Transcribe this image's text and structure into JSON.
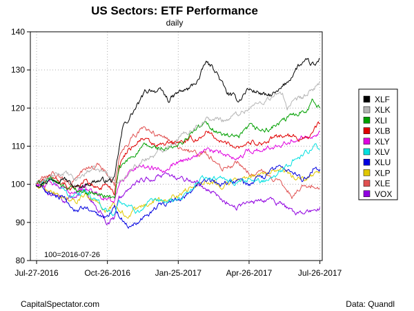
{
  "chart_data": {
    "type": "line",
    "title": "US Sectors: ETF Performance",
    "subtitle": "daily",
    "annotation": "100=2016-07-26",
    "source_left": "CapitalSpectator.com",
    "source_right": "Data: Quandl",
    "ylim": [
      80,
      140
    ],
    "yticks": [
      80,
      90,
      100,
      110,
      120,
      130,
      140
    ],
    "xlim": [
      "2016-07-19",
      "2017-07-29"
    ],
    "xticks": [
      {
        "date": "2016-07-27",
        "label": "Jul-27-2016"
      },
      {
        "date": "2016-10-26",
        "label": "Oct-26-2016"
      },
      {
        "date": "2017-01-25",
        "label": "Jan-25-2017"
      },
      {
        "date": "2017-04-26",
        "label": "Apr-26-2017"
      },
      {
        "date": "2017-07-26",
        "label": "Jul-26-2017"
      }
    ],
    "grid": true,
    "legend_position": "right",
    "series": [
      {
        "name": "XLF",
        "color": "#000000",
        "anchors": [
          [
            "2016-07-26",
            100
          ],
          [
            "2016-08-10",
            101
          ],
          [
            "2016-08-30",
            102
          ],
          [
            "2016-09-15",
            99
          ],
          [
            "2016-09-28",
            100
          ],
          [
            "2016-10-12",
            101
          ],
          [
            "2016-10-26",
            101
          ],
          [
            "2016-11-04",
            101
          ],
          [
            "2016-11-09",
            108
          ],
          [
            "2016-11-15",
            115
          ],
          [
            "2016-11-25",
            118
          ],
          [
            "2016-12-08",
            122
          ],
          [
            "2016-12-13",
            124
          ],
          [
            "2016-12-21",
            125
          ],
          [
            "2017-01-05",
            124
          ],
          [
            "2017-01-13",
            122
          ],
          [
            "2017-01-25",
            124
          ],
          [
            "2017-02-08",
            125
          ],
          [
            "2017-02-22",
            128
          ],
          [
            "2017-03-01",
            132
          ],
          [
            "2017-03-14",
            130
          ],
          [
            "2017-03-28",
            124
          ],
          [
            "2017-04-13",
            122
          ],
          [
            "2017-04-24",
            125
          ],
          [
            "2017-05-10",
            124
          ],
          [
            "2017-05-18",
            123
          ],
          [
            "2017-06-02",
            124
          ],
          [
            "2017-06-15",
            127
          ],
          [
            "2017-06-28",
            131
          ],
          [
            "2017-07-10",
            132
          ],
          [
            "2017-07-20",
            131
          ],
          [
            "2017-07-26",
            133
          ]
        ]
      },
      {
        "name": "XLK",
        "color": "#b4b4b4",
        "anchors": [
          [
            "2016-07-26",
            100
          ],
          [
            "2016-08-15",
            102
          ],
          [
            "2016-09-01",
            103
          ],
          [
            "2016-09-15",
            101
          ],
          [
            "2016-10-05",
            104
          ],
          [
            "2016-10-26",
            103
          ],
          [
            "2016-11-04",
            101
          ],
          [
            "2016-11-10",
            100
          ],
          [
            "2016-11-21",
            103
          ],
          [
            "2016-12-08",
            106
          ],
          [
            "2016-12-28",
            108
          ],
          [
            "2017-01-25",
            112
          ],
          [
            "2017-02-15",
            115
          ],
          [
            "2017-03-01",
            117
          ],
          [
            "2017-03-28",
            117
          ],
          [
            "2017-04-26",
            120
          ],
          [
            "2017-05-16",
            122
          ],
          [
            "2017-06-08",
            124
          ],
          [
            "2017-06-14",
            120
          ],
          [
            "2017-06-28",
            122
          ],
          [
            "2017-07-14",
            124
          ],
          [
            "2017-07-26",
            127
          ]
        ]
      },
      {
        "name": "XLI",
        "color": "#00a000",
        "anchors": [
          [
            "2016-07-26",
            100
          ],
          [
            "2016-08-15",
            101
          ],
          [
            "2016-09-09",
            99
          ],
          [
            "2016-09-30",
            98
          ],
          [
            "2016-10-20",
            97
          ],
          [
            "2016-10-26",
            97
          ],
          [
            "2016-11-04",
            96
          ],
          [
            "2016-11-10",
            104
          ],
          [
            "2016-11-30",
            108
          ],
          [
            "2016-12-13",
            110
          ],
          [
            "2017-01-10",
            109
          ],
          [
            "2017-01-25",
            110
          ],
          [
            "2017-02-15",
            114
          ],
          [
            "2017-03-01",
            116
          ],
          [
            "2017-03-22",
            113
          ],
          [
            "2017-04-13",
            112
          ],
          [
            "2017-04-26",
            115
          ],
          [
            "2017-05-17",
            114
          ],
          [
            "2017-06-05",
            116
          ],
          [
            "2017-06-20",
            118
          ],
          [
            "2017-07-10",
            120
          ],
          [
            "2017-07-17",
            122
          ],
          [
            "2017-07-26",
            120
          ]
        ]
      },
      {
        "name": "XLB",
        "color": "#e00000",
        "anchors": [
          [
            "2016-07-26",
            100
          ],
          [
            "2016-08-15",
            102
          ],
          [
            "2016-09-09",
            99
          ],
          [
            "2016-09-28",
            101
          ],
          [
            "2016-10-12",
            99
          ],
          [
            "2016-10-26",
            100
          ],
          [
            "2016-11-04",
            98
          ],
          [
            "2016-11-10",
            105
          ],
          [
            "2016-11-21",
            109
          ],
          [
            "2016-12-08",
            112
          ],
          [
            "2016-12-28",
            110
          ],
          [
            "2017-01-25",
            111
          ],
          [
            "2017-02-22",
            112
          ],
          [
            "2017-03-01",
            114
          ],
          [
            "2017-03-22",
            111
          ],
          [
            "2017-04-13",
            110
          ],
          [
            "2017-04-26",
            111
          ],
          [
            "2017-05-17",
            111
          ],
          [
            "2017-06-08",
            113
          ],
          [
            "2017-06-28",
            112
          ],
          [
            "2017-07-14",
            113
          ],
          [
            "2017-07-26",
            116
          ]
        ]
      },
      {
        "name": "XLY",
        "color": "#e000e0",
        "anchors": [
          [
            "2016-07-26",
            100
          ],
          [
            "2016-08-15",
            100
          ],
          [
            "2016-09-09",
            98
          ],
          [
            "2016-09-28",
            99
          ],
          [
            "2016-10-20",
            97
          ],
          [
            "2016-11-04",
            95
          ],
          [
            "2016-11-10",
            100
          ],
          [
            "2016-11-21",
            103
          ],
          [
            "2016-12-08",
            105
          ],
          [
            "2017-01-05",
            104
          ],
          [
            "2017-01-25",
            106
          ],
          [
            "2017-02-22",
            108
          ],
          [
            "2017-03-01",
            109
          ],
          [
            "2017-03-22",
            108
          ],
          [
            "2017-04-13",
            107
          ],
          [
            "2017-04-26",
            109
          ],
          [
            "2017-05-17",
            109
          ],
          [
            "2017-06-08",
            111
          ],
          [
            "2017-06-28",
            112
          ],
          [
            "2017-07-14",
            113
          ],
          [
            "2017-07-26",
            114
          ]
        ]
      },
      {
        "name": "XLV",
        "color": "#00e0e0",
        "anchors": [
          [
            "2016-07-26",
            100
          ],
          [
            "2016-08-15",
            101
          ],
          [
            "2016-09-09",
            97
          ],
          [
            "2016-09-28",
            98
          ],
          [
            "2016-10-20",
            94
          ],
          [
            "2016-11-04",
            92
          ],
          [
            "2016-11-10",
            96
          ],
          [
            "2016-12-01",
            93
          ],
          [
            "2016-12-21",
            95
          ],
          [
            "2017-01-25",
            96
          ],
          [
            "2017-02-22",
            101
          ],
          [
            "2017-03-01",
            102
          ],
          [
            "2017-03-28",
            101
          ],
          [
            "2017-04-13",
            100
          ],
          [
            "2017-04-26",
            101
          ],
          [
            "2017-05-17",
            101
          ],
          [
            "2017-06-08",
            104
          ],
          [
            "2017-06-20",
            106
          ],
          [
            "2017-07-05",
            108
          ],
          [
            "2017-07-20",
            110
          ],
          [
            "2017-07-26",
            109
          ]
        ]
      },
      {
        "name": "XLU",
        "color": "#0000e0",
        "anchors": [
          [
            "2016-07-26",
            100
          ],
          [
            "2016-08-10",
            98
          ],
          [
            "2016-08-30",
            96
          ],
          [
            "2016-09-15",
            93
          ],
          [
            "2016-09-28",
            94
          ],
          [
            "2016-10-12",
            92
          ],
          [
            "2016-10-26",
            91
          ],
          [
            "2016-11-04",
            95
          ],
          [
            "2016-11-10",
            92
          ],
          [
            "2016-11-21",
            89
          ],
          [
            "2016-12-08",
            91
          ],
          [
            "2016-12-28",
            94
          ],
          [
            "2017-01-25",
            96
          ],
          [
            "2017-02-15",
            99
          ],
          [
            "2017-03-01",
            101
          ],
          [
            "2017-03-22",
            100
          ],
          [
            "2017-04-13",
            101
          ],
          [
            "2017-04-26",
            100
          ],
          [
            "2017-05-17",
            102
          ],
          [
            "2017-06-05",
            105
          ],
          [
            "2017-06-20",
            103
          ],
          [
            "2017-07-05",
            101
          ],
          [
            "2017-07-20",
            105
          ],
          [
            "2017-07-26",
            104
          ]
        ]
      },
      {
        "name": "XLP",
        "color": "#e0c800",
        "anchors": [
          [
            "2016-07-26",
            100
          ],
          [
            "2016-08-10",
            99
          ],
          [
            "2016-08-30",
            97
          ],
          [
            "2016-09-15",
            96
          ],
          [
            "2016-09-28",
            97
          ],
          [
            "2016-10-12",
            95
          ],
          [
            "2016-10-26",
            93
          ],
          [
            "2016-11-04",
            95
          ],
          [
            "2016-11-10",
            93
          ],
          [
            "2016-11-21",
            92
          ],
          [
            "2016-12-08",
            94
          ],
          [
            "2016-12-28",
            96
          ],
          [
            "2017-01-25",
            97
          ],
          [
            "2017-02-15",
            100
          ],
          [
            "2017-03-01",
            101
          ],
          [
            "2017-03-22",
            100
          ],
          [
            "2017-04-13",
            101
          ],
          [
            "2017-04-26",
            102
          ],
          [
            "2017-05-17",
            103
          ],
          [
            "2017-06-05",
            104
          ],
          [
            "2017-06-20",
            102
          ],
          [
            "2017-07-05",
            101
          ],
          [
            "2017-07-20",
            103
          ],
          [
            "2017-07-26",
            103
          ]
        ]
      },
      {
        "name": "XLE",
        "color": "#e05050",
        "anchors": [
          [
            "2016-07-26",
            100
          ],
          [
            "2016-08-15",
            103
          ],
          [
            "2016-09-09",
            100
          ],
          [
            "2016-09-28",
            104
          ],
          [
            "2016-10-12",
            105
          ],
          [
            "2016-10-26",
            103
          ],
          [
            "2016-11-04",
            100
          ],
          [
            "2016-11-10",
            107
          ],
          [
            "2016-11-30",
            113
          ],
          [
            "2016-12-13",
            115
          ],
          [
            "2016-12-28",
            113
          ],
          [
            "2017-01-25",
            110
          ],
          [
            "2017-02-15",
            108
          ],
          [
            "2017-03-01",
            108
          ],
          [
            "2017-03-22",
            104
          ],
          [
            "2017-04-13",
            106
          ],
          [
            "2017-04-26",
            103
          ],
          [
            "2017-05-17",
            103
          ],
          [
            "2017-06-08",
            100
          ],
          [
            "2017-06-20",
            97
          ],
          [
            "2017-07-05",
            100
          ],
          [
            "2017-07-20",
            100
          ],
          [
            "2017-07-26",
            99
          ]
        ]
      },
      {
        "name": "VOX",
        "color": "#9000e0",
        "anchors": [
          [
            "2016-07-26",
            100
          ],
          [
            "2016-08-10",
            98
          ],
          [
            "2016-09-01",
            96
          ],
          [
            "2016-09-15",
            97
          ],
          [
            "2016-09-28",
            98
          ],
          [
            "2016-10-12",
            94
          ],
          [
            "2016-10-26",
            90
          ],
          [
            "2016-11-04",
            91
          ],
          [
            "2016-11-10",
            96
          ],
          [
            "2016-11-21",
            98
          ],
          [
            "2016-12-08",
            101
          ],
          [
            "2016-12-28",
            102
          ],
          [
            "2017-01-25",
            102
          ],
          [
            "2017-02-15",
            101
          ],
          [
            "2017-03-01",
            99
          ],
          [
            "2017-03-22",
            96
          ],
          [
            "2017-04-13",
            94
          ],
          [
            "2017-04-26",
            95
          ],
          [
            "2017-05-17",
            96
          ],
          [
            "2017-06-05",
            95
          ],
          [
            "2017-06-20",
            93
          ],
          [
            "2017-07-05",
            92
          ],
          [
            "2017-07-20",
            93
          ],
          [
            "2017-07-26",
            94
          ]
        ]
      }
    ]
  }
}
